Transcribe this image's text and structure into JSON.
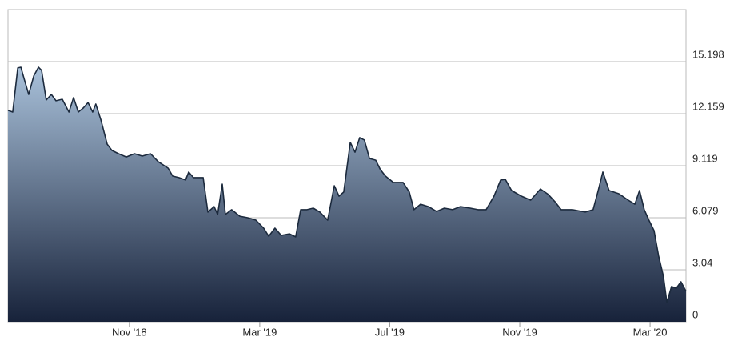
{
  "chart_data": {
    "type": "area",
    "color": "#1c2a3d",
    "gradient": [
      "#a9c1da",
      "#17223a"
    ],
    "x": [
      2018.522,
      2018.534,
      2018.547,
      2018.555,
      2018.563,
      2018.575,
      2018.588,
      2018.6,
      2018.608,
      2018.62,
      2018.633,
      2018.645,
      2018.661,
      2018.678,
      2018.69,
      2018.702,
      2018.715,
      2018.727,
      2018.739,
      2018.747,
      2018.76,
      2018.776,
      2018.788,
      2018.805,
      2018.825,
      2018.846,
      2018.866,
      2018.887,
      2018.907,
      2018.932,
      2018.944,
      2018.96,
      2018.977,
      2018.985,
      2018.997,
      2019.022,
      2019.034,
      2019.05,
      2019.059,
      2019.071,
      2019.079,
      2019.095,
      2019.116,
      2019.136,
      2019.157,
      2019.177,
      2019.19,
      2019.206,
      2019.222,
      2019.243,
      2019.259,
      2019.272,
      2019.288,
      2019.304,
      2019.321,
      2019.341,
      2019.358,
      2019.37,
      2019.382,
      2019.399,
      2019.411,
      2019.423,
      2019.435,
      2019.448,
      2019.464,
      2019.476,
      2019.489,
      2019.509,
      2019.534,
      2019.55,
      2019.562,
      2019.579,
      2019.599,
      2019.62,
      2019.64,
      2019.661,
      2019.681,
      2019.706,
      2019.726,
      2019.747,
      2019.767,
      2019.784,
      2019.796,
      2019.812,
      2019.837,
      2019.861,
      2019.886,
      2019.906,
      2019.923,
      2019.939,
      2019.968,
      2020.001,
      2020.021,
      2020.033,
      2020.046,
      2020.062,
      2020.087,
      2020.111,
      2020.128,
      2020.14,
      2020.152,
      2020.164,
      2020.177,
      2020.189,
      2020.201,
      2020.21,
      2020.222,
      2020.234,
      2020.246,
      2020.259
    ],
    "values": [
      12.35,
      12.25,
      14.83,
      14.87,
      14.22,
      13.28,
      14.36,
      14.87,
      14.69,
      12.96,
      13.28,
      12.91,
      13.0,
      12.25,
      13.1,
      12.25,
      12.49,
      12.81,
      12.25,
      12.72,
      11.79,
      10.38,
      10.01,
      9.82,
      9.63,
      9.82,
      9.68,
      9.82,
      9.35,
      8.98,
      8.51,
      8.42,
      8.28,
      8.75,
      8.42,
      8.42,
      6.41,
      6.73,
      6.27,
      8.04,
      6.27,
      6.55,
      6.17,
      6.08,
      5.94,
      5.47,
      5.0,
      5.47,
      5.05,
      5.14,
      4.96,
      6.55,
      6.55,
      6.64,
      6.41,
      5.94,
      7.95,
      7.34,
      7.58,
      10.48,
      9.91,
      10.76,
      10.62,
      9.54,
      9.44,
      8.89,
      8.51,
      8.14,
      8.14,
      7.58,
      6.55,
      6.87,
      6.73,
      6.45,
      6.64,
      6.55,
      6.73,
      6.64,
      6.55,
      6.55,
      7.34,
      8.28,
      8.32,
      7.67,
      7.34,
      7.11,
      7.76,
      7.44,
      7.02,
      6.55,
      6.55,
      6.41,
      6.55,
      7.58,
      8.75,
      7.67,
      7.48,
      7.11,
      6.87,
      7.67,
      6.55,
      5.94,
      5.33,
      3.84,
      2.67,
      1.12,
      2.06,
      1.96,
      2.34,
      1.78
    ],
    "xlim": [
      2018.522,
      2020.259
    ],
    "xticks": [
      {
        "value": 2018.833,
        "label": "Nov '18"
      },
      {
        "value": 2019.167,
        "label": "Mar '19"
      },
      {
        "value": 2019.5,
        "label": "Jul '19"
      },
      {
        "value": 2019.833,
        "label": "Nov '19"
      },
      {
        "value": 2020.167,
        "label": "Mar '20"
      }
    ],
    "ylim": [
      0,
      18.2376
    ],
    "yticks": [
      0,
      3.04,
      6.079,
      9.119,
      12.159,
      15.198
    ],
    "grid": true
  }
}
